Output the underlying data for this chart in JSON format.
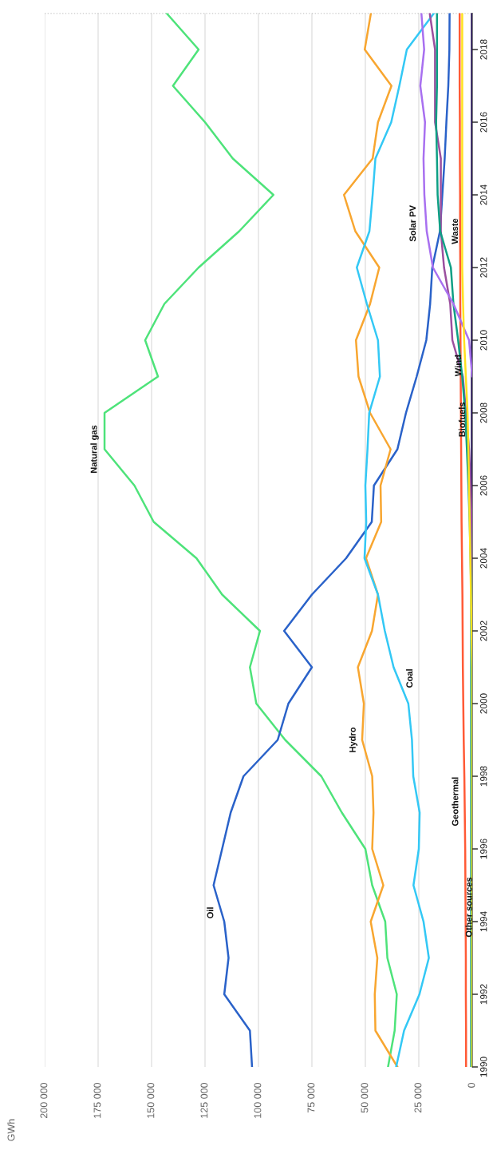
{
  "chart_data": {
    "type": "line",
    "orientation": "horizontal",
    "annotations": [
      "GWh"
    ],
    "x": [
      1990,
      1991,
      1992,
      1993,
      1994,
      1995,
      1996,
      1997,
      1998,
      1999,
      2000,
      2001,
      2002,
      2003,
      2004,
      2005,
      2006,
      2007,
      2008,
      2009,
      2010,
      2011,
      2012,
      2013,
      2014,
      2015,
      2016,
      2017,
      2018,
      2019
    ],
    "ylim": [
      1990,
      2019
    ],
    "yticks": [
      1990,
      1992,
      1994,
      1996,
      1998,
      2000,
      2002,
      2004,
      2006,
      2008,
      2010,
      2012,
      2014,
      2016,
      2018
    ],
    "xlim": [
      200000,
      0
    ],
    "xticks": [
      0,
      {
        "value": 25000,
        "label": "25 000"
      },
      {
        "value": 50000,
        "label": "50 000"
      },
      {
        "value": 75000,
        "label": "75 000"
      },
      {
        "value": 100000,
        "label": "100 000"
      },
      {
        "value": 125000,
        "label": "125 000"
      },
      {
        "value": 150000,
        "label": "150 000"
      },
      {
        "value": 175000,
        "label": "175 000"
      },
      {
        "value": 200000,
        "label": "200 000"
      }
    ],
    "grid": "x",
    "ref_lines": [
      {
        "axis": "y",
        "value": 2019,
        "line_style": "dotted",
        "color": "#aaaaaa"
      }
    ],
    "series": [
      {
        "name": "Natural gas",
        "color": "#4ee37a",
        "values": [
          39400,
          36300,
          35300,
          39700,
          40700,
          46800,
          50000,
          61000,
          70600,
          87500,
          101000,
          104000,
          99300,
          117000,
          129000,
          149000,
          158000,
          172000,
          172000,
          147000,
          153000,
          144000,
          128000,
          109000,
          93000,
          112000,
          125000,
          140000,
          128000,
          143000
        ]
      },
      {
        "name": "Oil",
        "color": "#2a62c9",
        "values": [
          103000,
          104000,
          116000,
          114000,
          116000,
          121000,
          117000,
          113000,
          107000,
          91000,
          86000,
          75000,
          88000,
          75000,
          59000,
          47000,
          46000,
          35000,
          31000,
          26000,
          21500,
          19700,
          18700,
          15100,
          14000,
          12900,
          12100,
          11200,
          10700,
          10600
        ]
      },
      {
        "name": "Hydro",
        "color": "#f8a630",
        "values": [
          35000,
          45300,
          45600,
          44400,
          47500,
          41600,
          46800,
          46200,
          46800,
          51500,
          50700,
          53500,
          46900,
          44100,
          49700,
          42600,
          42900,
          38200,
          47800,
          53200,
          54400,
          47800,
          43500,
          54700,
          60000,
          46600,
          44100,
          37800,
          50300,
          47400
        ]
      },
      {
        "name": "Coal",
        "color": "#33c8f5",
        "values": [
          35600,
          31900,
          24700,
          20300,
          22800,
          27500,
          25000,
          24600,
          27600,
          28200,
          29900,
          36800,
          40900,
          44100,
          50400,
          49600,
          50000,
          49000,
          48200,
          43200,
          44100,
          49300,
          54000,
          48100,
          46600,
          45300,
          37900,
          34100,
          30600,
          17900
        ]
      },
      {
        "name": "Geothermal",
        "color": "#ff5a36",
        "values": [
          2900,
          2900,
          3000,
          3000,
          3100,
          3200,
          3300,
          3500,
          3700,
          4000,
          4200,
          4400,
          4500,
          4600,
          4800,
          5000,
          5100,
          5200,
          5300,
          5400,
          5500,
          5600,
          5600,
          5700,
          5700,
          5800,
          5800,
          5900,
          5900,
          5900
        ]
      },
      {
        "name": "Other sources",
        "color": "#2c1b5a",
        "values": [
          200,
          200,
          200,
          200,
          200,
          200,
          200,
          200,
          200,
          200,
          200,
          200,
          200,
          200,
          200,
          200,
          200,
          200,
          200,
          200,
          200,
          200,
          200,
          200,
          200,
          200,
          200,
          200,
          200,
          200
        ]
      },
      {
        "name": "Biofuels",
        "color": "#9b4f9f",
        "values": [
          300,
          300,
          300,
          300,
          300,
          300,
          300,
          300,
          300,
          300,
          300,
          300,
          300,
          300,
          300,
          300,
          800,
          1500,
          2900,
          4400,
          9300,
          10300,
          13200,
          14700,
          14700,
          14700,
          17400,
          17400,
          17400,
          19900
        ]
      },
      {
        "name": "Wind",
        "color": "#0e9f84",
        "values": [
          500,
          500,
          500,
          500,
          500,
          500,
          500,
          500,
          500,
          500,
          500,
          500,
          500,
          500,
          800,
          1200,
          1800,
          2500,
          3300,
          4700,
          6600,
          8800,
          10000,
          15000,
          16200,
          16500,
          16900,
          16500,
          16500,
          16500
        ]
      },
      {
        "name": "Solar PV",
        "color": "#a870f0",
        "values": [
          null,
          null,
          null,
          null,
          null,
          null,
          null,
          null,
          null,
          null,
          null,
          null,
          null,
          null,
          null,
          null,
          null,
          null,
          null,
          0,
          1500,
          8800,
          18400,
          21300,
          22400,
          22800,
          22100,
          24300,
          22500,
          23800
        ]
      },
      {
        "name": "Waste",
        "color": "#ffe21f",
        "values": [
          0,
          0,
          0,
          0,
          0,
          0,
          0,
          0,
          0,
          0,
          0,
          0,
          300,
          600,
          900,
          1200,
          1500,
          1800,
          2200,
          3000,
          3800,
          4300,
          4700,
          4700,
          4700,
          4700,
          4700,
          4700,
          4700,
          4700
        ]
      }
    ]
  }
}
